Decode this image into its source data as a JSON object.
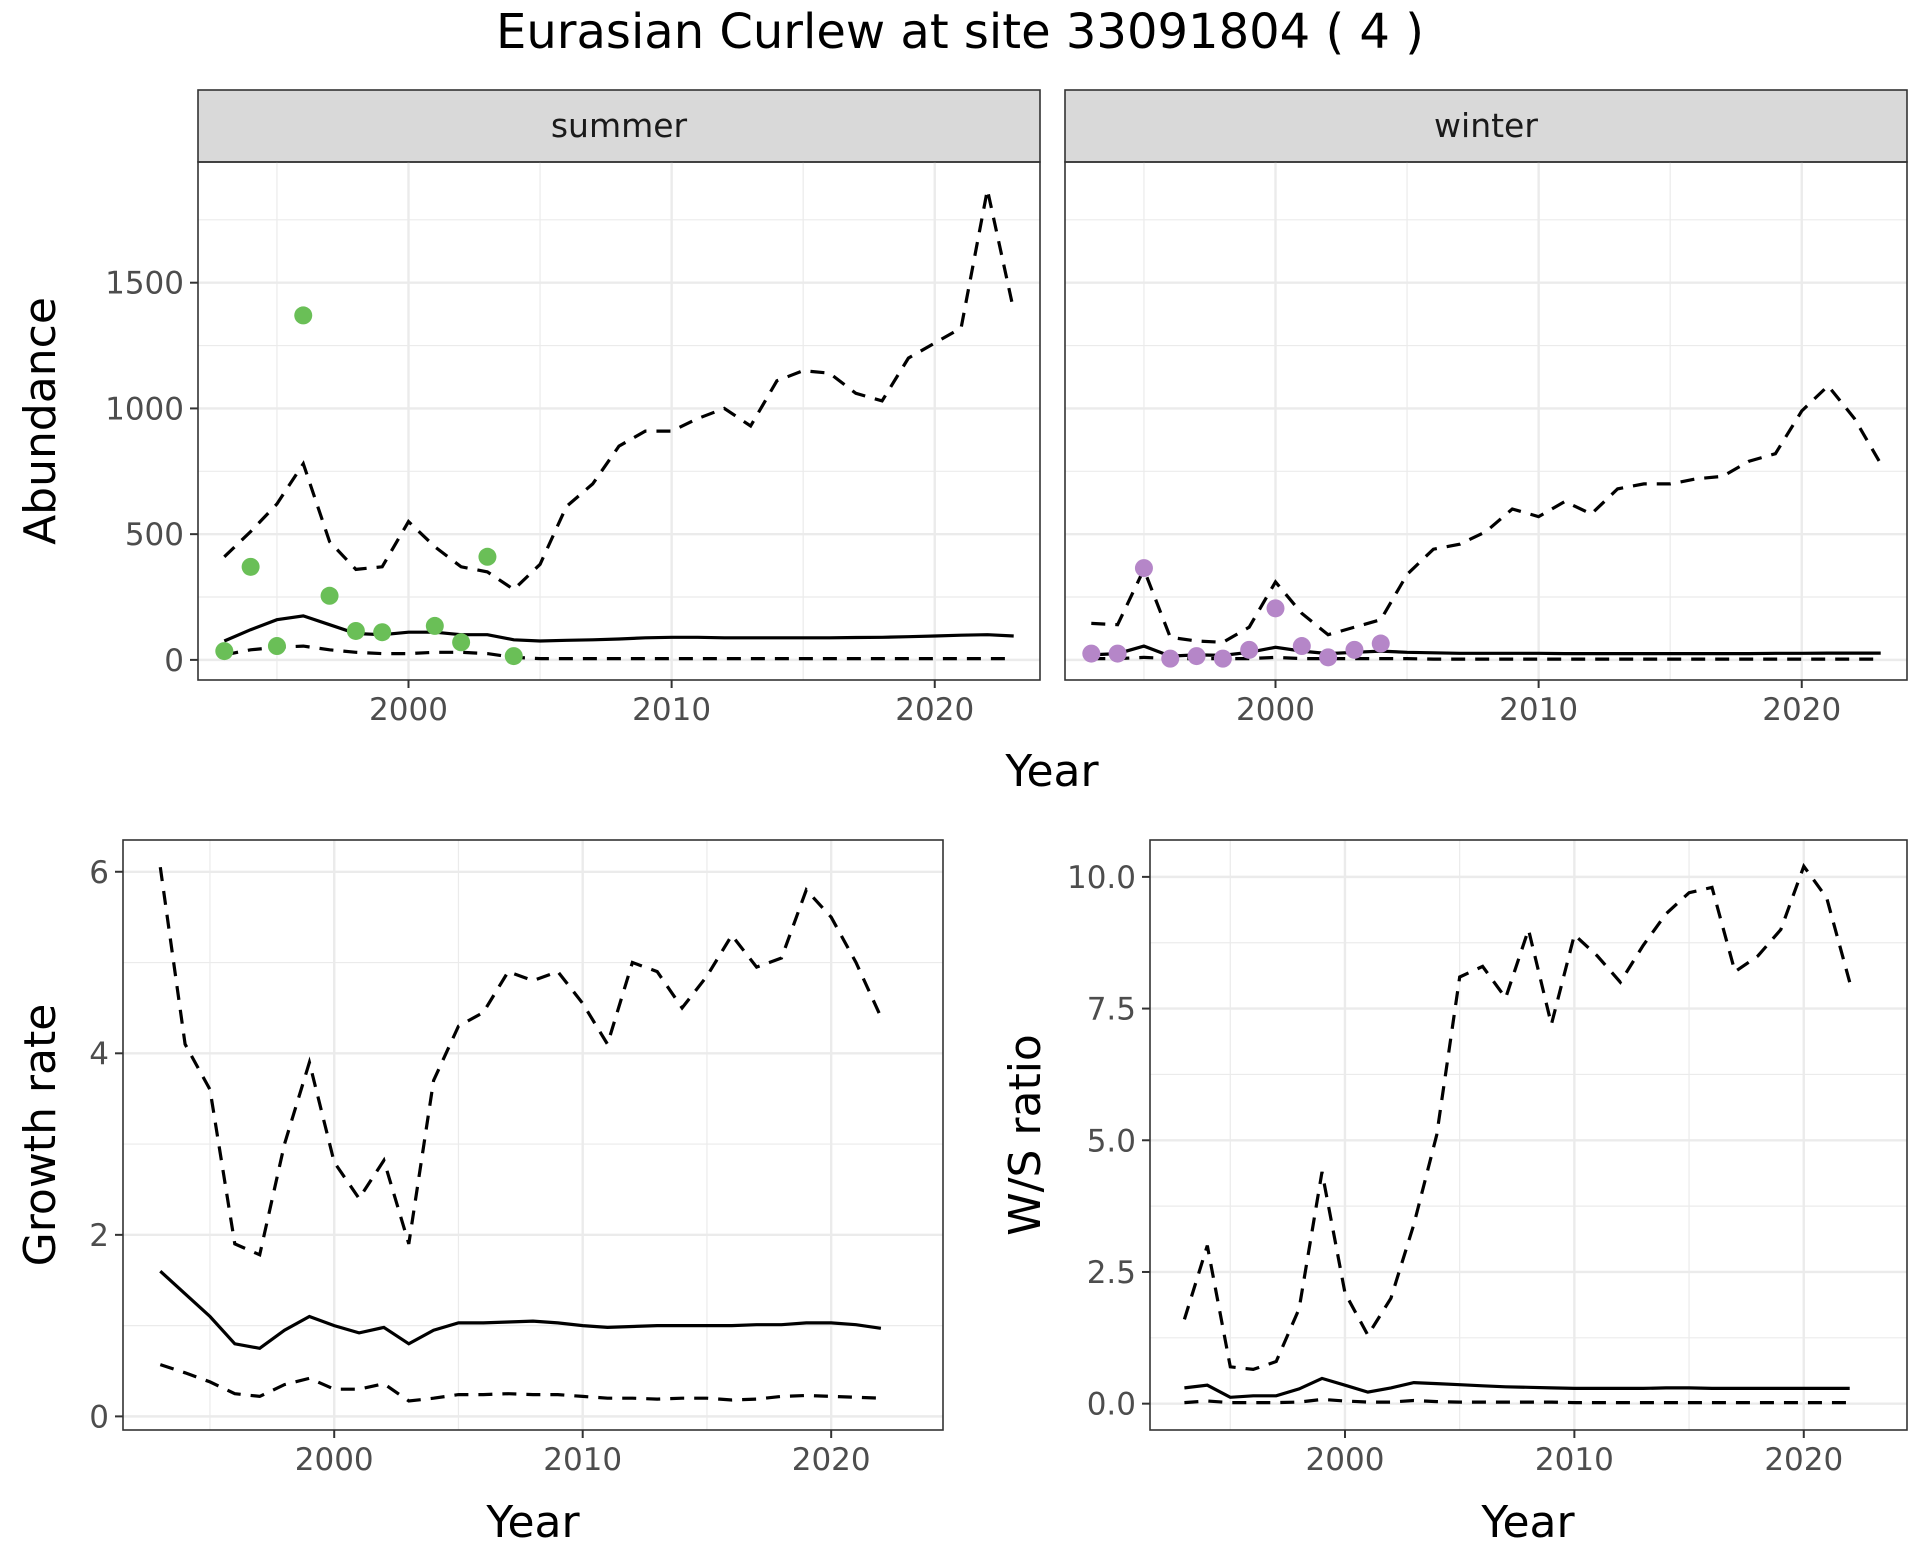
{
  "title": "Eurasian Curlew at site 33091804 ( 4 )",
  "colors": {
    "summer_points": "#6abf57",
    "winter_points": "#b586c8"
  },
  "chart_data": [
    {
      "type": "line",
      "facet": "summer",
      "xlabel": "Year",
      "ylabel": "Abundance",
      "xlim": [
        1992,
        2024
      ],
      "ylim": [
        -80,
        1980
      ],
      "x_ticks": [
        2000,
        2010,
        2020
      ],
      "y_ticks": [
        0,
        500,
        1000,
        1500
      ],
      "series": [
        {
          "role": "lower",
          "style": "dashed",
          "x": [
            1993,
            1994,
            1995,
            1996,
            1997,
            1998,
            1999,
            2000,
            2001,
            2002,
            2003,
            2004,
            2005,
            2006,
            2007,
            2008,
            2009,
            2010,
            2011,
            2012,
            2013,
            2014,
            2015,
            2016,
            2017,
            2018,
            2019,
            2020,
            2021,
            2022,
            2023
          ],
          "y": [
            20,
            40,
            50,
            55,
            40,
            30,
            25,
            25,
            30,
            30,
            25,
            10,
            5,
            5,
            5,
            5,
            5,
            5,
            5,
            5,
            5,
            5,
            5,
            5,
            5,
            5,
            5,
            5,
            5,
            5,
            5
          ]
        },
        {
          "role": "estimate",
          "style": "solid",
          "x": [
            1993,
            1994,
            1995,
            1996,
            1997,
            1998,
            1999,
            2000,
            2001,
            2002,
            2003,
            2004,
            2005,
            2006,
            2007,
            2008,
            2009,
            2010,
            2011,
            2012,
            2013,
            2014,
            2015,
            2016,
            2017,
            2018,
            2019,
            2020,
            2021,
            2022,
            2023
          ],
          "y": [
            75,
            120,
            160,
            175,
            140,
            105,
            100,
            110,
            110,
            100,
            100,
            80,
            75,
            78,
            80,
            83,
            88,
            90,
            90,
            88,
            88,
            88,
            88,
            88,
            89,
            90,
            92,
            95,
            98,
            100,
            95
          ]
        },
        {
          "role": "upper",
          "style": "dashed",
          "x": [
            1993,
            1994,
            1995,
            1996,
            1997,
            1998,
            1999,
            2000,
            2001,
            2002,
            2003,
            2004,
            2005,
            2006,
            2007,
            2008,
            2009,
            2010,
            2011,
            2012,
            2013,
            2014,
            2015,
            2016,
            2017,
            2018,
            2019,
            2020,
            2021,
            2022,
            2023
          ],
          "y": [
            410,
            510,
            620,
            780,
            470,
            360,
            370,
            550,
            450,
            370,
            350,
            280,
            380,
            610,
            700,
            850,
            910,
            910,
            960,
            1000,
            930,
            1110,
            1150,
            1140,
            1060,
            1030,
            1200,
            1260,
            1320,
            1870,
            1390
          ]
        }
      ],
      "points": {
        "x": [
          1993,
          1994,
          1995,
          1996,
          1997,
          1998,
          1999,
          2001,
          2002,
          2003,
          2004
        ],
        "y": [
          35,
          370,
          55,
          1370,
          255,
          115,
          110,
          135,
          70,
          410,
          15
        ]
      }
    },
    {
      "type": "line",
      "facet": "winter",
      "xlabel": "Year",
      "ylabel": "Abundance",
      "xlim": [
        1992,
        2024
      ],
      "ylim": [
        -80,
        1980
      ],
      "x_ticks": [
        2000,
        2010,
        2020
      ],
      "y_ticks": [
        0,
        500,
        1000,
        1500
      ],
      "series": [
        {
          "role": "lower",
          "style": "dashed",
          "x": [
            1993,
            1994,
            1995,
            1996,
            1997,
            1998,
            1999,
            2000,
            2001,
            2002,
            2003,
            2004,
            2005,
            2006,
            2007,
            2008,
            2009,
            2010,
            2011,
            2012,
            2013,
            2014,
            2015,
            2016,
            2017,
            2018,
            2019,
            2020,
            2021,
            2022,
            2023
          ],
          "y": [
            5,
            5,
            10,
            5,
            5,
            5,
            5,
            10,
            5,
            5,
            5,
            5,
            5,
            3,
            3,
            3,
            3,
            3,
            3,
            3,
            3,
            3,
            3,
            3,
            3,
            3,
            3,
            3,
            3,
            3,
            3
          ]
        },
        {
          "role": "estimate",
          "style": "solid",
          "x": [
            1993,
            1994,
            1995,
            1996,
            1997,
            1998,
            1999,
            2000,
            2001,
            2002,
            2003,
            2004,
            2005,
            2006,
            2007,
            2008,
            2009,
            2010,
            2011,
            2012,
            2013,
            2014,
            2015,
            2016,
            2017,
            2018,
            2019,
            2020,
            2021,
            2022,
            2023
          ],
          "y": [
            20,
            25,
            55,
            15,
            20,
            18,
            30,
            50,
            35,
            25,
            30,
            35,
            30,
            28,
            26,
            26,
            26,
            26,
            25,
            25,
            25,
            25,
            25,
            25,
            25,
            25,
            26,
            26,
            27,
            27,
            27
          ]
        },
        {
          "role": "upper",
          "style": "dashed",
          "x": [
            1993,
            1994,
            1995,
            1996,
            1997,
            1998,
            1999,
            2000,
            2001,
            2002,
            2003,
            2004,
            2005,
            2006,
            2007,
            2008,
            2009,
            2010,
            2011,
            2012,
            2013,
            2014,
            2015,
            2016,
            2017,
            2018,
            2019,
            2020,
            2021,
            2022,
            2023
          ],
          "y": [
            145,
            140,
            360,
            90,
            75,
            70,
            130,
            310,
            185,
            100,
            130,
            160,
            340,
            440,
            460,
            510,
            600,
            570,
            630,
            580,
            680,
            700,
            700,
            720,
            730,
            790,
            820,
            990,
            1090,
            960,
            780
          ]
        }
      ],
      "points": {
        "x": [
          1993,
          1994,
          1995,
          1996,
          1997,
          1998,
          1999,
          2000,
          2001,
          2002,
          2003,
          2004
        ],
        "y": [
          25,
          25,
          365,
          5,
          15,
          5,
          40,
          205,
          55,
          10,
          40,
          65
        ]
      }
    },
    {
      "type": "line",
      "xlabel": "Year",
      "ylabel": "Growth rate",
      "xlim": [
        1991.5,
        2024.5
      ],
      "ylim": [
        -0.15,
        6.35
      ],
      "x_ticks": [
        2000,
        2010,
        2020
      ],
      "y_ticks": [
        0,
        2,
        4,
        6
      ],
      "series": [
        {
          "role": "lower",
          "style": "dashed",
          "x": [
            1993,
            1994,
            1995,
            1996,
            1997,
            1998,
            1999,
            2000,
            2001,
            2002,
            2003,
            2004,
            2005,
            2006,
            2007,
            2008,
            2009,
            2010,
            2011,
            2012,
            2013,
            2014,
            2015,
            2016,
            2017,
            2018,
            2019,
            2020,
            2021,
            2022
          ],
          "y": [
            0.57,
            0.48,
            0.38,
            0.25,
            0.22,
            0.35,
            0.42,
            0.3,
            0.3,
            0.36,
            0.17,
            0.2,
            0.24,
            0.24,
            0.25,
            0.24,
            0.24,
            0.22,
            0.2,
            0.2,
            0.19,
            0.2,
            0.2,
            0.18,
            0.19,
            0.22,
            0.23,
            0.22,
            0.21,
            0.2
          ]
        },
        {
          "role": "estimate",
          "style": "solid",
          "x": [
            1993,
            1994,
            1995,
            1996,
            1997,
            1998,
            1999,
            2000,
            2001,
            2002,
            2003,
            2004,
            2005,
            2006,
            2007,
            2008,
            2009,
            2010,
            2011,
            2012,
            2013,
            2014,
            2015,
            2016,
            2017,
            2018,
            2019,
            2020,
            2021,
            2022
          ],
          "y": [
            1.6,
            1.35,
            1.1,
            0.8,
            0.75,
            0.95,
            1.1,
            1.0,
            0.92,
            0.98,
            0.8,
            0.95,
            1.03,
            1.03,
            1.04,
            1.05,
            1.03,
            1.0,
            0.98,
            0.99,
            1.0,
            1.0,
            1.0,
            1.0,
            1.01,
            1.01,
            1.03,
            1.03,
            1.01,
            0.97
          ]
        },
        {
          "role": "upper",
          "style": "dashed",
          "x": [
            1993,
            1994,
            1995,
            1996,
            1997,
            1998,
            1999,
            2000,
            2001,
            2002,
            2003,
            2004,
            2005,
            2006,
            2007,
            2008,
            2009,
            2010,
            2011,
            2012,
            2013,
            2014,
            2015,
            2016,
            2017,
            2018,
            2019,
            2020,
            2021,
            2022
          ],
          "y": [
            6.05,
            4.1,
            3.6,
            1.9,
            1.78,
            3.0,
            3.9,
            2.8,
            2.4,
            2.82,
            1.9,
            3.7,
            4.3,
            4.45,
            4.9,
            4.8,
            4.9,
            4.55,
            4.1,
            5.0,
            4.9,
            4.5,
            4.85,
            5.3,
            4.95,
            5.05,
            5.8,
            5.5,
            5.0,
            4.4
          ]
        }
      ]
    },
    {
      "type": "line",
      "xlabel": "Year",
      "ylabel": "W/S ratio",
      "xlim": [
        1991.5,
        2024.5
      ],
      "ylim": [
        -0.5,
        10.7
      ],
      "x_ticks": [
        2000,
        2010,
        2020
      ],
      "y_ticks": [
        0.0,
        2.5,
        5.0,
        7.5,
        10.0
      ],
      "y_tick_labels": [
        "0.0",
        "2.5",
        "5.0",
        "7.5",
        "10.0"
      ],
      "series": [
        {
          "role": "lower",
          "style": "dashed",
          "x": [
            1993,
            1994,
            1995,
            1996,
            1997,
            1998,
            1999,
            2000,
            2001,
            2002,
            2003,
            2004,
            2005,
            2006,
            2007,
            2008,
            2009,
            2010,
            2011,
            2012,
            2013,
            2014,
            2015,
            2016,
            2017,
            2018,
            2019,
            2020,
            2021,
            2022
          ],
          "y": [
            0.02,
            0.05,
            0.02,
            0.02,
            0.02,
            0.03,
            0.08,
            0.05,
            0.03,
            0.03,
            0.06,
            0.04,
            0.03,
            0.03,
            0.03,
            0.03,
            0.03,
            0.02,
            0.02,
            0.02,
            0.02,
            0.02,
            0.02,
            0.02,
            0.02,
            0.02,
            0.02,
            0.02,
            0.02,
            0.02
          ]
        },
        {
          "role": "estimate",
          "style": "solid",
          "x": [
            1993,
            1994,
            1995,
            1996,
            1997,
            1998,
            1999,
            2000,
            2001,
            2002,
            2003,
            2004,
            2005,
            2006,
            2007,
            2008,
            2009,
            2010,
            2011,
            2012,
            2013,
            2014,
            2015,
            2016,
            2017,
            2018,
            2019,
            2020,
            2021,
            2022
          ],
          "y": [
            0.3,
            0.35,
            0.12,
            0.15,
            0.15,
            0.28,
            0.48,
            0.35,
            0.22,
            0.3,
            0.4,
            0.38,
            0.36,
            0.34,
            0.32,
            0.31,
            0.3,
            0.29,
            0.29,
            0.29,
            0.29,
            0.3,
            0.3,
            0.29,
            0.29,
            0.29,
            0.29,
            0.29,
            0.29,
            0.29
          ]
        },
        {
          "role": "upper",
          "style": "dashed",
          "x": [
            1993,
            1994,
            1995,
            1996,
            1997,
            1998,
            1999,
            2000,
            2001,
            2002,
            2003,
            2004,
            2005,
            2006,
            2007,
            2008,
            2009,
            2010,
            2011,
            2012,
            2013,
            2014,
            2015,
            2016,
            2017,
            2018,
            2019,
            2020,
            2021,
            2022
          ],
          "y": [
            1.6,
            3.0,
            0.7,
            0.65,
            0.8,
            1.8,
            4.4,
            2.1,
            1.3,
            2.0,
            3.4,
            5.1,
            8.1,
            8.3,
            7.7,
            9.0,
            7.2,
            8.9,
            8.5,
            8.0,
            8.7,
            9.3,
            9.7,
            9.8,
            8.2,
            8.5,
            9.0,
            10.2,
            9.6,
            8.0
          ]
        }
      ]
    }
  ]
}
